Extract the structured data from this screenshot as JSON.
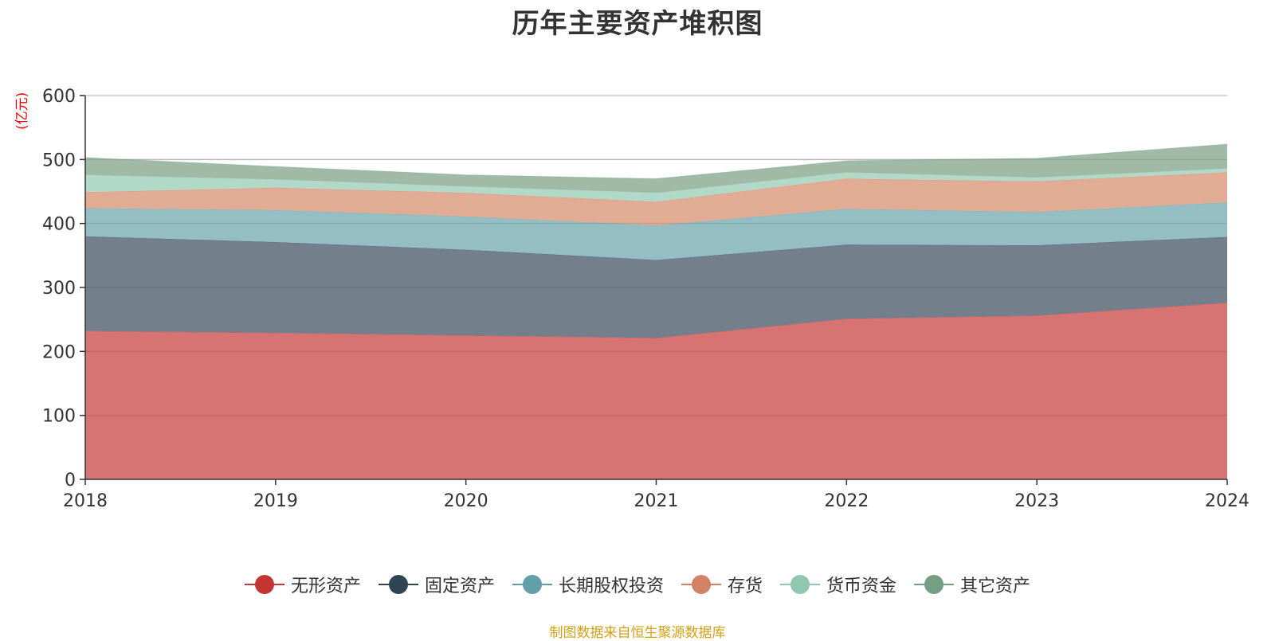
{
  "chart_data": {
    "type": "area",
    "stacked": true,
    "title": "历年主要资产堆积图",
    "ylabel": "(亿元)",
    "xlabel": "",
    "ylim": [
      0,
      600
    ],
    "yticks": [
      0,
      100,
      200,
      300,
      400,
      500,
      600
    ],
    "categories": [
      "2018",
      "2019",
      "2020",
      "2021",
      "2022",
      "2023",
      "2024"
    ],
    "series": [
      {
        "name": "无形资产",
        "color": "#c23531",
        "area_color": "#d4706d",
        "values": [
          232,
          229,
          225,
          221,
          251,
          256,
          276
        ]
      },
      {
        "name": "固定资产",
        "color": "#2f4554",
        "area_color": "#6e7c88",
        "values": [
          148,
          142,
          134,
          122,
          116,
          110,
          103
        ]
      },
      {
        "name": "长期股权投资",
        "color": "#61a0a8",
        "area_color": "#91bcc2",
        "values": [
          44,
          50,
          52,
          54,
          56,
          52,
          54
        ]
      },
      {
        "name": "存货",
        "color": "#d48265",
        "area_color": "#e0a893",
        "values": [
          25,
          35,
          37,
          37,
          47,
          48,
          47
        ]
      },
      {
        "name": "货币资金",
        "color": "#91c7ae",
        "area_color": "#b0d8c6",
        "values": [
          27,
          13,
          10,
          14,
          10,
          6,
          6
        ]
      },
      {
        "name": "其它资产",
        "color": "#749f83",
        "area_color": "#9cb8a3",
        "values": [
          27,
          20,
          18,
          22,
          18,
          30,
          38
        ]
      }
    ],
    "legend_position": "bottom",
    "grid": true
  },
  "footer": {
    "source": "制图数据来自恒生聚源数据库"
  }
}
